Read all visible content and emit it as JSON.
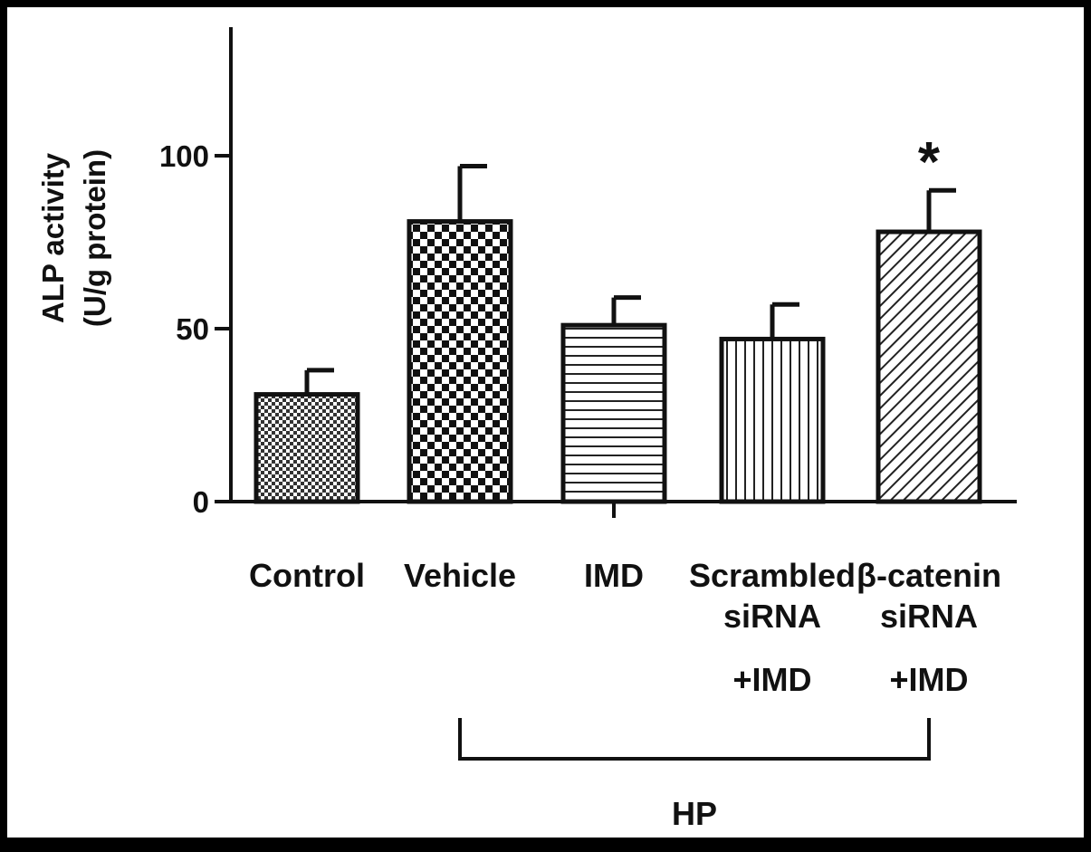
{
  "chart_data": {
    "type": "bar",
    "title": "",
    "ylabel_lines": [
      "ALP activity",
      "(U/g protein)"
    ],
    "ylim": [
      0,
      135
    ],
    "yticks": [
      0,
      50,
      100
    ],
    "grid": false,
    "categories": [
      [
        "Control"
      ],
      [
        "Vehicle"
      ],
      [
        "IMD"
      ],
      [
        "Scrambled",
        "siRNA",
        "+IMD"
      ],
      [
        "β-catenin",
        "siRNA",
        "+IMD"
      ]
    ],
    "values": [
      31,
      81,
      51,
      47,
      78
    ],
    "errors": [
      7,
      16,
      8,
      10,
      12
    ],
    "patterns": [
      "fine-dots",
      "checker",
      "horizontal-lines",
      "vertical-lines",
      "diagonal-lines"
    ],
    "significance": [
      "",
      "",
      "",
      "",
      "*"
    ],
    "group_bracket": {
      "label": "HP",
      "from_index": 1,
      "to_index": 4
    },
    "colors": {
      "ink": "#111111",
      "fill": "#ffffff",
      "frame": "#000000"
    }
  }
}
